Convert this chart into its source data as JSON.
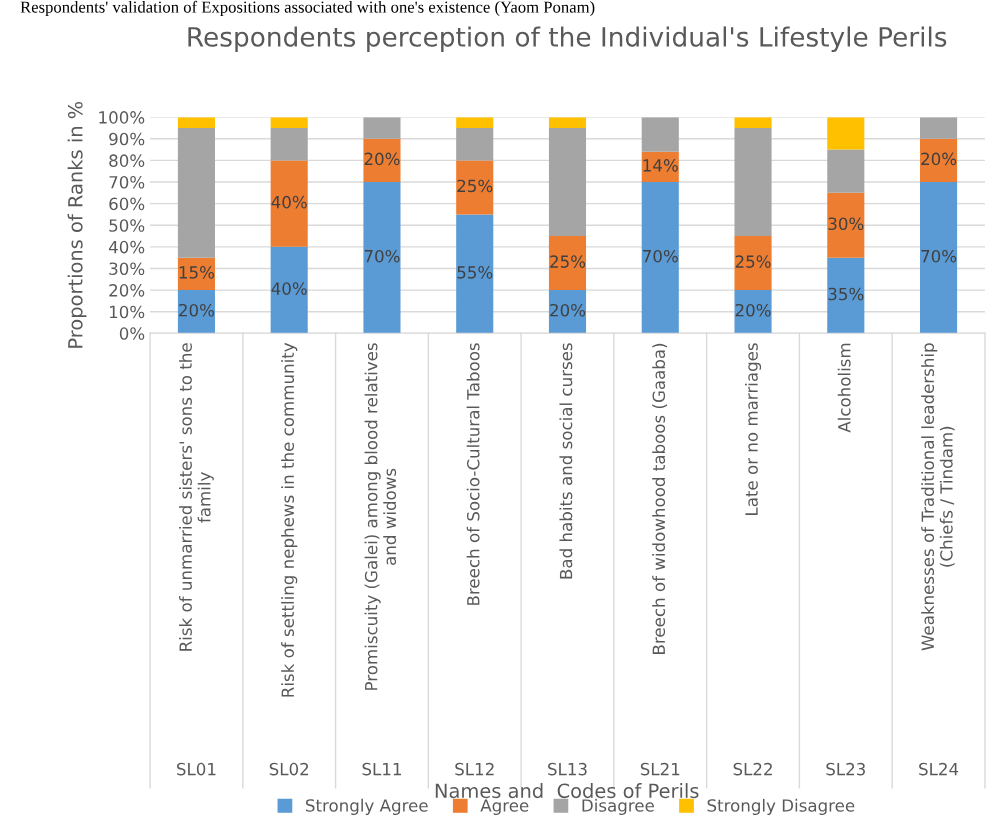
{
  "chart_data": {
    "type": "bar",
    "stacked": true,
    "title": "Respondents perception of the Individual's Lifestyle Perils",
    "xlabel": "Names and  Codes of Perils",
    "ylabel": "Proportions of Ranks in %",
    "categories": [
      "Risk of unmarried sisters' sons to the\nfamily",
      "Risk of settling nephews in the community",
      "Promiscuity (Galei) among blood relatives\nand widows",
      "Breech of Socio-Cultural Taboos",
      "Bad habits and social curses",
      "Breech of widowhood taboos (Gaaba)",
      "Late or no marriages",
      "Alcoholism",
      "Weaknesses of Traditional leadership\n(Chiefs / Tindam)"
    ],
    "series": [
      {
        "name": "Strongly Agree",
        "color": "#5b9bd5",
        "values": [
          20,
          40,
          70,
          55,
          20,
          70,
          20,
          35,
          70
        ],
        "value_labels": [
          "20%",
          "40%",
          "70%",
          "55%",
          "20%",
          "70%",
          "20%",
          "35%",
          "70%"
        ]
      },
      {
        "name": "Agree",
        "color": "#ed7d31",
        "values": [
          15,
          40,
          20,
          25,
          25,
          14,
          25,
          30,
          20
        ],
        "value_labels": [
          "15%",
          "40%",
          "20%",
          "25%",
          "25%",
          "14%",
          "25%",
          "30%",
          "20%"
        ]
      },
      {
        "name": "Disagree",
        "color": "#a5a5a5",
        "values": [
          60,
          15,
          10,
          15,
          50,
          16,
          50,
          20,
          10
        ]
      },
      {
        "name": "Strongly Disagree",
        "color": "#ffc000",
        "values": [
          5,
          5,
          0,
          5,
          5,
          0,
          5,
          15,
          0
        ]
      }
    ],
    "ylim": [
      0,
      100
    ],
    "yticks": [
      {
        "value": 0,
        "label": "0%"
      },
      {
        "value": 10,
        "label": "10%"
      },
      {
        "value": 20,
        "label": "20%"
      },
      {
        "value": 30,
        "label": "30%"
      },
      {
        "value": 40,
        "label": "40%"
      },
      {
        "value": 50,
        "label": "50%"
      },
      {
        "value": 60,
        "label": "60%"
      },
      {
        "value": 70,
        "label": "70%"
      },
      {
        "value": 80,
        "label": "80%"
      },
      {
        "value": 90,
        "label": "90%"
      },
      {
        "value": 100,
        "label": "100%"
      }
    ],
    "grid": "y",
    "legend": "bottom",
    "annotations": [
      "Respondents' validation of Expositions associated with one's existence (Yaom Ponam)",
      "SL01",
      "SL02",
      "SL11",
      "SL12",
      "SL13",
      "SL21",
      "SL22",
      "SL23",
      "SL24"
    ]
  }
}
